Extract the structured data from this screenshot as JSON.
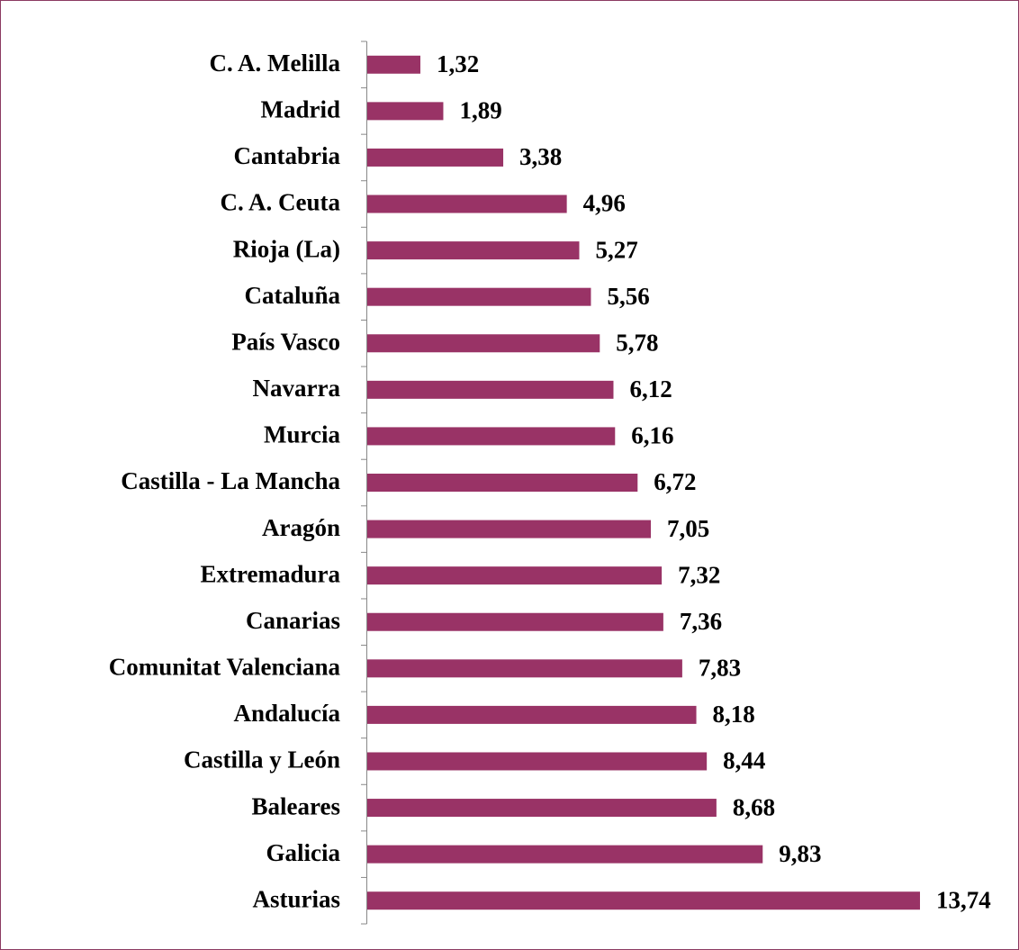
{
  "chart_data": {
    "type": "bar",
    "orientation": "horizontal",
    "color": "#993366",
    "categories": [
      "C. A. Melilla",
      "Madrid",
      "Cantabria",
      "C. A. Ceuta",
      "Rioja (La)",
      "Cataluña",
      "País Vasco",
      "Navarra",
      "Murcia",
      "Castilla - La Mancha",
      "Aragón",
      "Extremadura",
      "Canarias",
      "Comunitat Valenciana",
      "Andalucía",
      "Castilla y León",
      "Baleares",
      "Galicia",
      "Asturias"
    ],
    "values": [
      1.32,
      1.89,
      3.38,
      4.96,
      5.27,
      5.56,
      5.78,
      6.12,
      6.16,
      6.72,
      7.05,
      7.32,
      7.36,
      7.83,
      8.18,
      8.44,
      8.68,
      9.83,
      13.74
    ],
    "value_labels": [
      "1,32",
      "1,89",
      "3,38",
      "4,96",
      "5,27",
      "5,56",
      "5,78",
      "6,12",
      "6,16",
      "6,72",
      "7,05",
      "7,32",
      "7,36",
      "7,83",
      "8,18",
      "8,44",
      "8,68",
      "9,83",
      "13,74"
    ]
  }
}
